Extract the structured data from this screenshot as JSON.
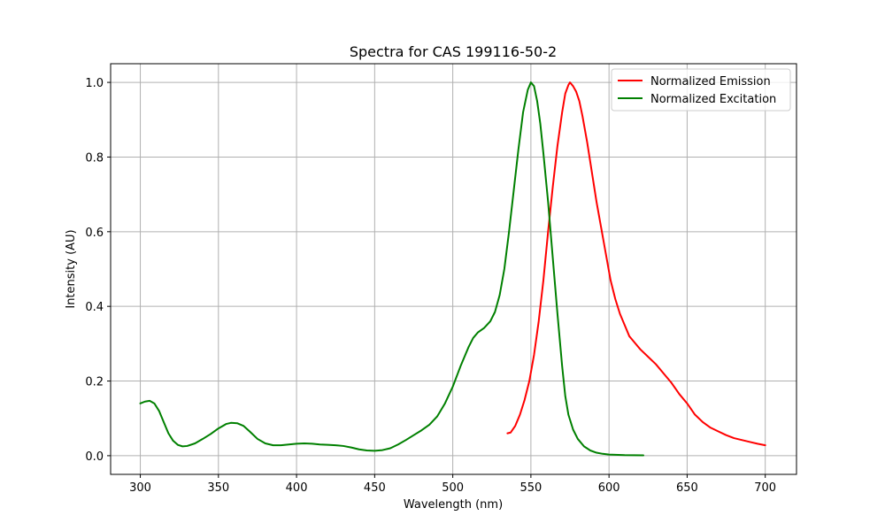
{
  "chart_data": {
    "type": "line",
    "title": "Spectra for CAS 199116-50-2",
    "xlabel": "Wavelength (nm)",
    "ylabel": "Intensity (AU)",
    "xlim": [
      281,
      720
    ],
    "ylim": [
      -0.05,
      1.05
    ],
    "xticks": [
      300,
      350,
      400,
      450,
      500,
      550,
      600,
      650,
      700
    ],
    "yticks": [
      0.0,
      0.2,
      0.4,
      0.6,
      0.8,
      1.0
    ],
    "xtick_labels": [
      "300",
      "350",
      "400",
      "450",
      "500",
      "550",
      "600",
      "650",
      "700"
    ],
    "ytick_labels": [
      "0.0",
      "0.2",
      "0.4",
      "0.6",
      "0.8",
      "1.0"
    ],
    "grid": true,
    "legend_position": "top-right",
    "series": [
      {
        "name": "Normalized Emission",
        "color": "#ff0000",
        "points": [
          [
            535,
            0.06
          ],
          [
            537,
            0.062
          ],
          [
            540,
            0.08
          ],
          [
            543,
            0.11
          ],
          [
            546,
            0.15
          ],
          [
            549,
            0.2
          ],
          [
            552,
            0.27
          ],
          [
            555,
            0.36
          ],
          [
            558,
            0.47
          ],
          [
            561,
            0.6
          ],
          [
            564,
            0.72
          ],
          [
            567,
            0.83
          ],
          [
            570,
            0.92
          ],
          [
            572,
            0.97
          ],
          [
            574,
            0.993
          ],
          [
            575,
            1.0
          ],
          [
            577,
            0.99
          ],
          [
            579,
            0.975
          ],
          [
            581,
            0.95
          ],
          [
            583,
            0.91
          ],
          [
            586,
            0.84
          ],
          [
            589,
            0.76
          ],
          [
            592,
            0.68
          ],
          [
            595,
            0.61
          ],
          [
            598,
            0.54
          ],
          [
            601,
            0.47
          ],
          [
            604,
            0.42
          ],
          [
            607,
            0.38
          ],
          [
            610,
            0.35
          ],
          [
            613,
            0.32
          ],
          [
            617,
            0.3
          ],
          [
            620,
            0.285
          ],
          [
            625,
            0.265
          ],
          [
            630,
            0.245
          ],
          [
            635,
            0.22
          ],
          [
            640,
            0.195
          ],
          [
            645,
            0.165
          ],
          [
            650,
            0.14
          ],
          [
            655,
            0.11
          ],
          [
            660,
            0.09
          ],
          [
            665,
            0.075
          ],
          [
            670,
            0.065
          ],
          [
            675,
            0.055
          ],
          [
            680,
            0.047
          ],
          [
            685,
            0.042
          ],
          [
            690,
            0.037
          ],
          [
            695,
            0.032
          ],
          [
            700,
            0.028
          ]
        ]
      },
      {
        "name": "Normalized Excitation",
        "color": "#008000",
        "points": [
          [
            300,
            0.14
          ],
          [
            303,
            0.145
          ],
          [
            306,
            0.147
          ],
          [
            309,
            0.14
          ],
          [
            312,
            0.12
          ],
          [
            315,
            0.09
          ],
          [
            318,
            0.06
          ],
          [
            321,
            0.04
          ],
          [
            324,
            0.029
          ],
          [
            327,
            0.025
          ],
          [
            330,
            0.026
          ],
          [
            335,
            0.033
          ],
          [
            340,
            0.045
          ],
          [
            345,
            0.058
          ],
          [
            350,
            0.073
          ],
          [
            355,
            0.085
          ],
          [
            358,
            0.088
          ],
          [
            362,
            0.087
          ],
          [
            366,
            0.08
          ],
          [
            370,
            0.065
          ],
          [
            375,
            0.045
          ],
          [
            380,
            0.033
          ],
          [
            385,
            0.028
          ],
          [
            390,
            0.028
          ],
          [
            395,
            0.03
          ],
          [
            400,
            0.032
          ],
          [
            405,
            0.033
          ],
          [
            410,
            0.032
          ],
          [
            415,
            0.03
          ],
          [
            420,
            0.029
          ],
          [
            425,
            0.028
          ],
          [
            430,
            0.026
          ],
          [
            435,
            0.022
          ],
          [
            440,
            0.017
          ],
          [
            445,
            0.014
          ],
          [
            450,
            0.013
          ],
          [
            455,
            0.015
          ],
          [
            460,
            0.02
          ],
          [
            465,
            0.03
          ],
          [
            470,
            0.042
          ],
          [
            475,
            0.055
          ],
          [
            480,
            0.068
          ],
          [
            485,
            0.083
          ],
          [
            490,
            0.105
          ],
          [
            495,
            0.14
          ],
          [
            500,
            0.185
          ],
          [
            505,
            0.24
          ],
          [
            510,
            0.29
          ],
          [
            513,
            0.315
          ],
          [
            516,
            0.33
          ],
          [
            520,
            0.342
          ],
          [
            524,
            0.36
          ],
          [
            527,
            0.385
          ],
          [
            530,
            0.43
          ],
          [
            533,
            0.5
          ],
          [
            536,
            0.6
          ],
          [
            539,
            0.71
          ],
          [
            542,
            0.82
          ],
          [
            545,
            0.92
          ],
          [
            548,
            0.98
          ],
          [
            550,
            1.0
          ],
          [
            552,
            0.99
          ],
          [
            554,
            0.95
          ],
          [
            556,
            0.89
          ],
          [
            558,
            0.81
          ],
          [
            561,
            0.68
          ],
          [
            564,
            0.53
          ],
          [
            567,
            0.38
          ],
          [
            570,
            0.24
          ],
          [
            572,
            0.16
          ],
          [
            574,
            0.11
          ],
          [
            577,
            0.07
          ],
          [
            580,
            0.045
          ],
          [
            584,
            0.025
          ],
          [
            588,
            0.014
          ],
          [
            592,
            0.008
          ],
          [
            596,
            0.005
          ],
          [
            600,
            0.003
          ],
          [
            610,
            0.0015
          ],
          [
            622,
            0.001
          ]
        ]
      }
    ]
  }
}
